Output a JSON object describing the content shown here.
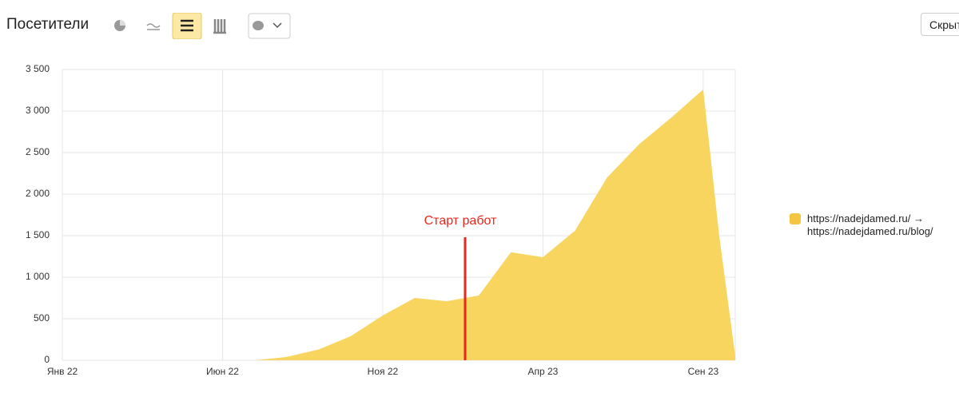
{
  "header": {
    "title": "Посетители",
    "button": "Скрыть"
  },
  "chart_data": {
    "type": "area",
    "x": [
      0,
      5,
      6,
      7,
      8,
      9,
      10,
      11,
      12,
      13,
      14,
      15,
      16,
      17,
      18,
      19,
      20,
      20.5,
      21
    ],
    "series": [
      {
        "name": "https://nadejdamed.ru/ → https://nadejdamed.ru/blog/",
        "color": "#f8d55f",
        "values": [
          0,
          0,
          0,
          40,
          130,
          290,
          540,
          750,
          710,
          780,
          1300,
          1240,
          1560,
          2200,
          2600,
          2920,
          3260,
          1500,
          50
        ]
      }
    ],
    "xlim": [
      0,
      21
    ],
    "xticks": [
      {
        "value": 0,
        "label": "Янв 22"
      },
      {
        "value": 5,
        "label": "Июн 22"
      },
      {
        "value": 10,
        "label": "Ноя 22"
      },
      {
        "value": 15,
        "label": "Апр 23"
      },
      {
        "value": 20,
        "label": "Сен 23"
      }
    ],
    "ylim": [
      0,
      3500
    ],
    "yticks": [
      0,
      500,
      {
        "value": 1000,
        "label": "1 000"
      },
      {
        "value": 1500,
        "label": "1 500"
      },
      {
        "value": 2000,
        "label": "2 000"
      },
      {
        "value": 2500,
        "label": "2 500"
      },
      {
        "value": 3000,
        "label": "3 000"
      },
      {
        "value": 3500,
        "label": "3 500"
      }
    ],
    "grid": true,
    "annotation": {
      "text": "Старт работ",
      "x": 12.57,
      "color": "#e8271d"
    }
  }
}
